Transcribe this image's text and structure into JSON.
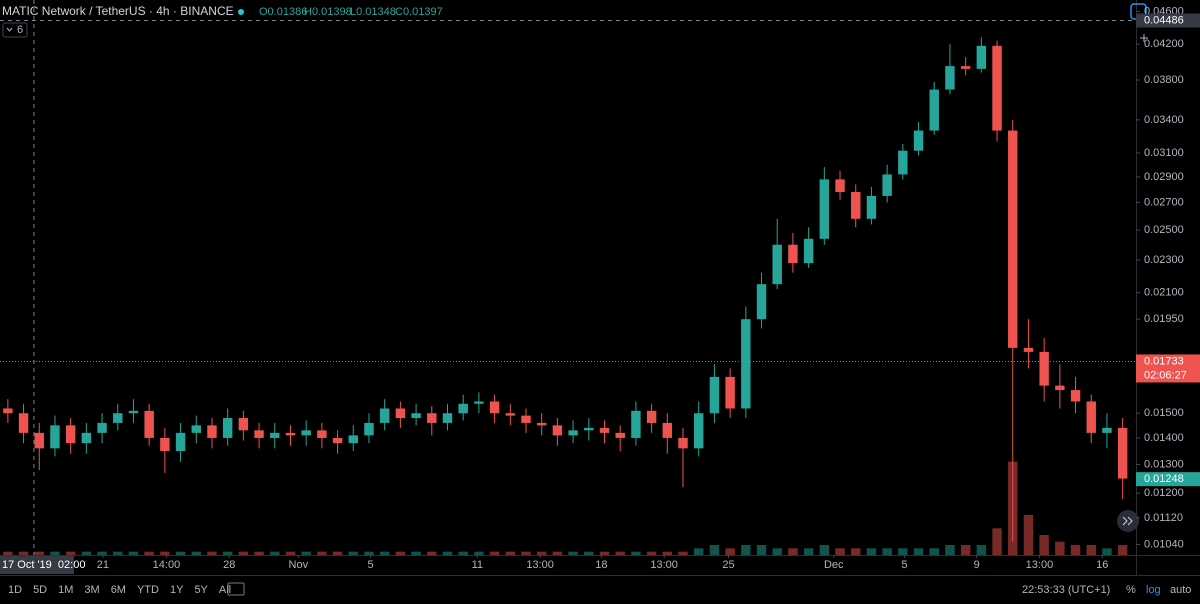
{
  "header": {
    "symbol": "MATIC Network / TetherUS · 4h · BINANCE",
    "ohlc": [
      "O0.01386",
      "H0.01398",
      "L0.01348",
      "C0.01397"
    ],
    "interval": "6"
  },
  "toolbar": {
    "ranges": [
      "1D",
      "5D",
      "1M",
      "3M",
      "6M",
      "YTD",
      "1Y",
      "5Y",
      "All"
    ],
    "time": "22:53:33 (UTC+1)",
    "percent": "%",
    "log": "log",
    "auto": "auto"
  },
  "chart_data": {
    "type": "candlestick",
    "log_scale": true,
    "grid": false,
    "up_color": "#26a69a",
    "down_color": "#ef5350",
    "xlim": [
      -0.5,
      71.85
    ],
    "ylim": [
      0.0101,
      0.0475
    ],
    "y2lim": [
      0,
      30
    ],
    "open": [
      0.0152,
      0.015,
      0.0142,
      0.0136,
      0.0145,
      0.0138,
      0.0142,
      0.0146,
      0.015,
      0.0151,
      0.014,
      0.0135,
      0.0142,
      0.0145,
      0.014,
      0.0148,
      0.0143,
      0.014,
      0.0142,
      0.0141,
      0.0143,
      0.014,
      0.0138,
      0.0141,
      0.0146,
      0.0152,
      0.0148,
      0.015,
      0.0146,
      0.015,
      0.0154,
      0.0155,
      0.015,
      0.0149,
      0.0146,
      0.0145,
      0.0141,
      0.0143,
      0.0144,
      0.0142,
      0.014,
      0.0151,
      0.0146,
      0.014,
      0.0136,
      0.015,
      0.0166,
      0.0152,
      0.0195,
      0.0215,
      0.024,
      0.0228,
      0.0244,
      0.0288,
      0.0278,
      0.0258,
      0.0275,
      0.0292,
      0.0312,
      0.033,
      0.037,
      0.0395,
      0.0392,
      0.0418,
      0.033,
      0.018,
      0.0178,
      0.0162,
      0.016,
      0.0155,
      0.0142,
      0.0144
    ],
    "high": [
      0.0156,
      0.0154,
      0.0146,
      0.0149,
      0.0148,
      0.0146,
      0.015,
      0.0154,
      0.0156,
      0.0154,
      0.0144,
      0.0146,
      0.0149,
      0.0148,
      0.0152,
      0.0151,
      0.0146,
      0.0146,
      0.0145,
      0.0147,
      0.0146,
      0.0143,
      0.0145,
      0.015,
      0.0156,
      0.0155,
      0.0154,
      0.0153,
      0.0154,
      0.0158,
      0.0159,
      0.0158,
      0.0154,
      0.0152,
      0.015,
      0.0148,
      0.0147,
      0.0148,
      0.0147,
      0.0145,
      0.0155,
      0.0154,
      0.015,
      0.0144,
      0.0155,
      0.0172,
      0.017,
      0.0202,
      0.0222,
      0.0258,
      0.0248,
      0.0252,
      0.0298,
      0.0295,
      0.0284,
      0.0282,
      0.03,
      0.0318,
      0.0338,
      0.0378,
      0.042,
      0.0405,
      0.0428,
      0.0424,
      0.034,
      0.0195,
      0.0185,
      0.0172,
      0.0166,
      0.0158,
      0.015,
      0.0148
    ],
    "low": [
      0.0146,
      0.0138,
      0.0128,
      0.0133,
      0.0134,
      0.0134,
      0.0138,
      0.0143,
      0.0146,
      0.0137,
      0.0127,
      0.0131,
      0.0138,
      0.0136,
      0.0137,
      0.0139,
      0.0136,
      0.0136,
      0.0137,
      0.0137,
      0.0136,
      0.0134,
      0.0135,
      0.0138,
      0.0143,
      0.0144,
      0.0145,
      0.0141,
      0.0143,
      0.0147,
      0.015,
      0.0146,
      0.0145,
      0.0142,
      0.0141,
      0.0137,
      0.0138,
      0.0139,
      0.0138,
      0.0135,
      0.0137,
      0.0142,
      0.0134,
      0.0122,
      0.0133,
      0.0146,
      0.0148,
      0.0148,
      0.019,
      0.0212,
      0.0222,
      0.0225,
      0.024,
      0.0272,
      0.0252,
      0.0254,
      0.027,
      0.0288,
      0.0308,
      0.0326,
      0.0365,
      0.0385,
      0.0388,
      0.032,
      0.0105,
      0.017,
      0.0155,
      0.0152,
      0.015,
      0.0138,
      0.0136,
      0.0118
    ],
    "close": [
      0.015,
      0.0142,
      0.0136,
      0.0145,
      0.0138,
      0.0142,
      0.0146,
      0.015,
      0.0151,
      0.014,
      0.0135,
      0.0142,
      0.0145,
      0.014,
      0.0148,
      0.0143,
      0.014,
      0.0142,
      0.0141,
      0.0143,
      0.014,
      0.0138,
      0.0141,
      0.0146,
      0.0152,
      0.0148,
      0.015,
      0.0146,
      0.015,
      0.0154,
      0.0155,
      0.015,
      0.0149,
      0.0146,
      0.0145,
      0.0141,
      0.0143,
      0.0144,
      0.0142,
      0.014,
      0.0151,
      0.0146,
      0.014,
      0.0136,
      0.015,
      0.0166,
      0.0152,
      0.0195,
      0.0215,
      0.024,
      0.0228,
      0.0244,
      0.0288,
      0.0278,
      0.0258,
      0.0275,
      0.0292,
      0.0312,
      0.033,
      0.037,
      0.0395,
      0.0392,
      0.0418,
      0.033,
      0.018,
      0.0178,
      0.0162,
      0.016,
      0.0155,
      0.0142,
      0.0144,
      0.0125
    ],
    "volume": [
      1,
      1,
      1,
      1,
      1,
      1,
      1,
      1,
      1,
      1,
      1,
      1,
      1,
      1,
      1,
      1,
      1,
      1,
      1,
      1,
      1,
      1,
      1,
      1,
      1,
      1,
      1,
      1,
      1,
      1,
      1,
      1,
      1,
      1,
      1,
      1,
      1,
      1,
      1,
      1,
      1,
      1,
      1,
      1,
      2,
      3,
      2,
      3,
      3,
      2,
      2,
      2,
      3,
      2,
      2,
      2,
      2,
      2,
      2,
      2,
      3,
      3,
      3,
      8,
      28,
      12,
      6,
      4,
      3,
      3,
      2,
      3
    ],
    "yticks": [
      {
        "value": 0.046,
        "label": "0.04600"
      },
      {
        "value": 0.042,
        "label": "0.04200"
      },
      {
        "value": 0.038,
        "label": "0.03800"
      },
      {
        "value": 0.034,
        "label": "0.03400"
      },
      {
        "value": 0.031,
        "label": "0.03100"
      },
      {
        "value": 0.029,
        "label": "0.02900"
      },
      {
        "value": 0.027,
        "label": "0.02700"
      },
      {
        "value": 0.025,
        "label": "0.02500"
      },
      {
        "value": 0.023,
        "label": "0.02300"
      },
      {
        "value": 0.021,
        "label": "0.02100"
      },
      {
        "value": 0.0195,
        "label": "0.01950"
      },
      {
        "value": 0.015,
        "label": "0.01500"
      },
      {
        "value": 0.014,
        "label": "0.01400"
      },
      {
        "value": 0.013,
        "label": "0.01300"
      },
      {
        "value": 0.012,
        "label": "0.01200"
      },
      {
        "value": 0.0112,
        "label": "0.01120"
      },
      {
        "value": 0.0104,
        "label": "0.01040"
      }
    ],
    "xticks": [
      {
        "value": 6.05,
        "label": "21"
      },
      {
        "value": 10.1,
        "label": "14:00"
      },
      {
        "value": 14.1,
        "label": "28"
      },
      {
        "value": 18.5,
        "label": "Nov"
      },
      {
        "value": 23.1,
        "label": "5"
      },
      {
        "value": 29.9,
        "label": "11"
      },
      {
        "value": 33.9,
        "label": "13:00"
      },
      {
        "value": 37.8,
        "label": "18"
      },
      {
        "value": 41.8,
        "label": "13:00"
      },
      {
        "value": 45.9,
        "label": "25"
      },
      {
        "value": 52.6,
        "label": "Dec"
      },
      {
        "value": 57.1,
        "label": "5"
      },
      {
        "value": 61.7,
        "label": "9"
      },
      {
        "value": 65.7,
        "label": "13:00"
      },
      {
        "value": 69.7,
        "label": "16"
      }
    ],
    "crosshair": {
      "price": {
        "value": 0.04486,
        "label": "0.04486"
      },
      "time": {
        "value": 1.66,
        "label": "17 Oct '19  02:00"
      }
    },
    "price_line": {
      "value": 0.01733,
      "label": "0.01733",
      "countdown": "02:06:27"
    },
    "last_price": {
      "value": 0.01248,
      "label": "0.01248"
    }
  }
}
